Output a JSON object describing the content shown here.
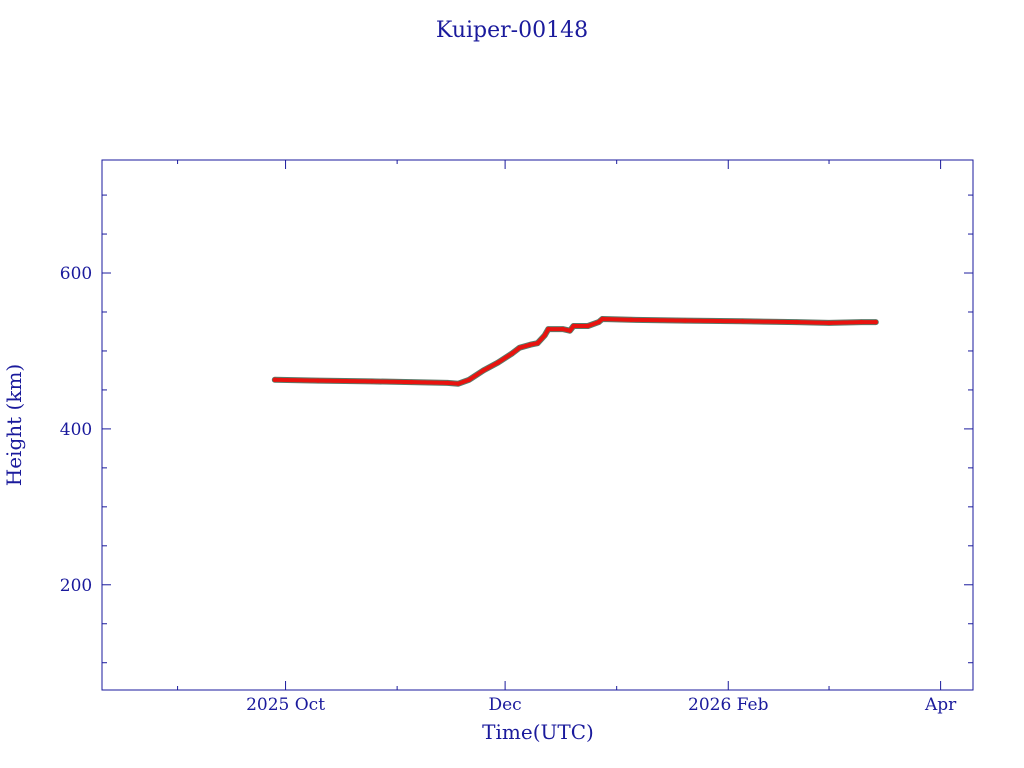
{
  "chart_data": {
    "type": "line",
    "title": "Kuiper-00148",
    "xlabel": "Time(UTC)",
    "ylabel": "Height (km)",
    "x_type": "date",
    "xlim": [
      "2025-08-11",
      "2026-04-10"
    ],
    "ylim": [
      65,
      745
    ],
    "x_ticks": [
      {
        "date": "2025-10-01",
        "label": "2025 Oct"
      },
      {
        "date": "2025-12-01",
        "label": "Dec"
      },
      {
        "date": "2026-02-01",
        "label": "2026 Feb"
      },
      {
        "date": "2026-04-01",
        "label": "Apr"
      }
    ],
    "x_minor_ticks": [
      "2025-09-01",
      "2025-11-01",
      "2026-01-01",
      "2026-03-01"
    ],
    "y_ticks": [
      200,
      400,
      600
    ],
    "y_minor_step": 50,
    "grid": false,
    "series": [
      {
        "color": "#e8130f",
        "underlay_color": "#5a7a6a",
        "points": [
          [
            "2025-09-28",
            463
          ],
          [
            "2025-10-10",
            462
          ],
          [
            "2025-10-25",
            461
          ],
          [
            "2025-11-05",
            460
          ],
          [
            "2025-11-15",
            459
          ],
          [
            "2025-11-18",
            458
          ],
          [
            "2025-11-21",
            463
          ],
          [
            "2025-11-25",
            475
          ],
          [
            "2025-11-29",
            485
          ],
          [
            "2025-12-03",
            497
          ],
          [
            "2025-12-05",
            504
          ],
          [
            "2025-12-08",
            508
          ],
          [
            "2025-12-10",
            510
          ],
          [
            "2025-12-12",
            520
          ],
          [
            "2025-12-13",
            528
          ],
          [
            "2025-12-17",
            528
          ],
          [
            "2025-12-19",
            526
          ],
          [
            "2025-12-20",
            532
          ],
          [
            "2025-12-24",
            532
          ],
          [
            "2025-12-27",
            537
          ],
          [
            "2025-12-28",
            541
          ],
          [
            "2026-01-05",
            540
          ],
          [
            "2026-01-20",
            539
          ],
          [
            "2026-02-05",
            538
          ],
          [
            "2026-02-20",
            537
          ],
          [
            "2026-03-01",
            536
          ],
          [
            "2026-03-10",
            537
          ],
          [
            "2026-03-14",
            537
          ]
        ]
      }
    ]
  }
}
